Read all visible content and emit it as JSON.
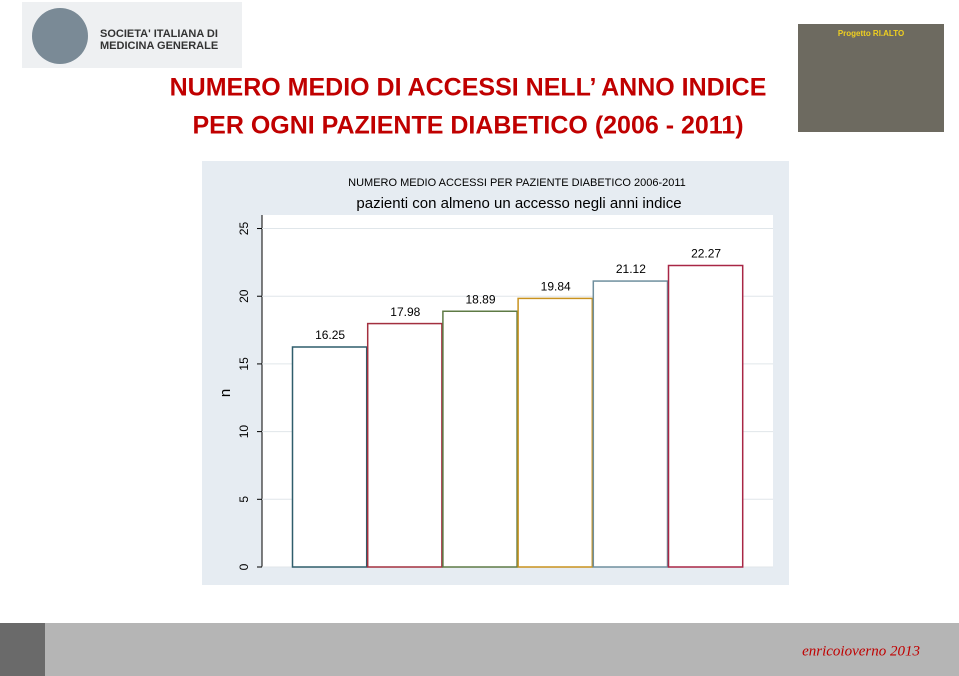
{
  "header": {
    "logo_text": [
      "SOCIETA' ITALIANA DI",
      "MEDICINA GENERALE"
    ],
    "title": [
      "NUMERO MEDIO DI ACCESSI  NELL’ ANNO INDICE",
      "PER OGNI PAZIENTE DIABETICO (2006 - 2011)"
    ],
    "photo_label": "Progetto RI.ALTO"
  },
  "chart_data": {
    "type": "bar",
    "title": "NUMERO MEDIO ACCESSI PER PAZIENTE DIABETICO 2006-2011",
    "subtitle": "pazienti con almeno un accesso negli anni indice",
    "y_label": "n",
    "values": [
      16.25,
      17.98,
      18.89,
      19.84,
      21.12,
      22.27
    ],
    "colors": [
      "#2f5d6b",
      "#a3303f",
      "#5e7a45",
      "#c8921e",
      "#6f8f9e",
      "#a82645"
    ],
    "ylim": [
      0,
      26
    ],
    "yticks": [
      0,
      5,
      10,
      15,
      20,
      25
    ],
    "grid": true
  },
  "footer": {
    "text": "enricoioverno 2013"
  }
}
